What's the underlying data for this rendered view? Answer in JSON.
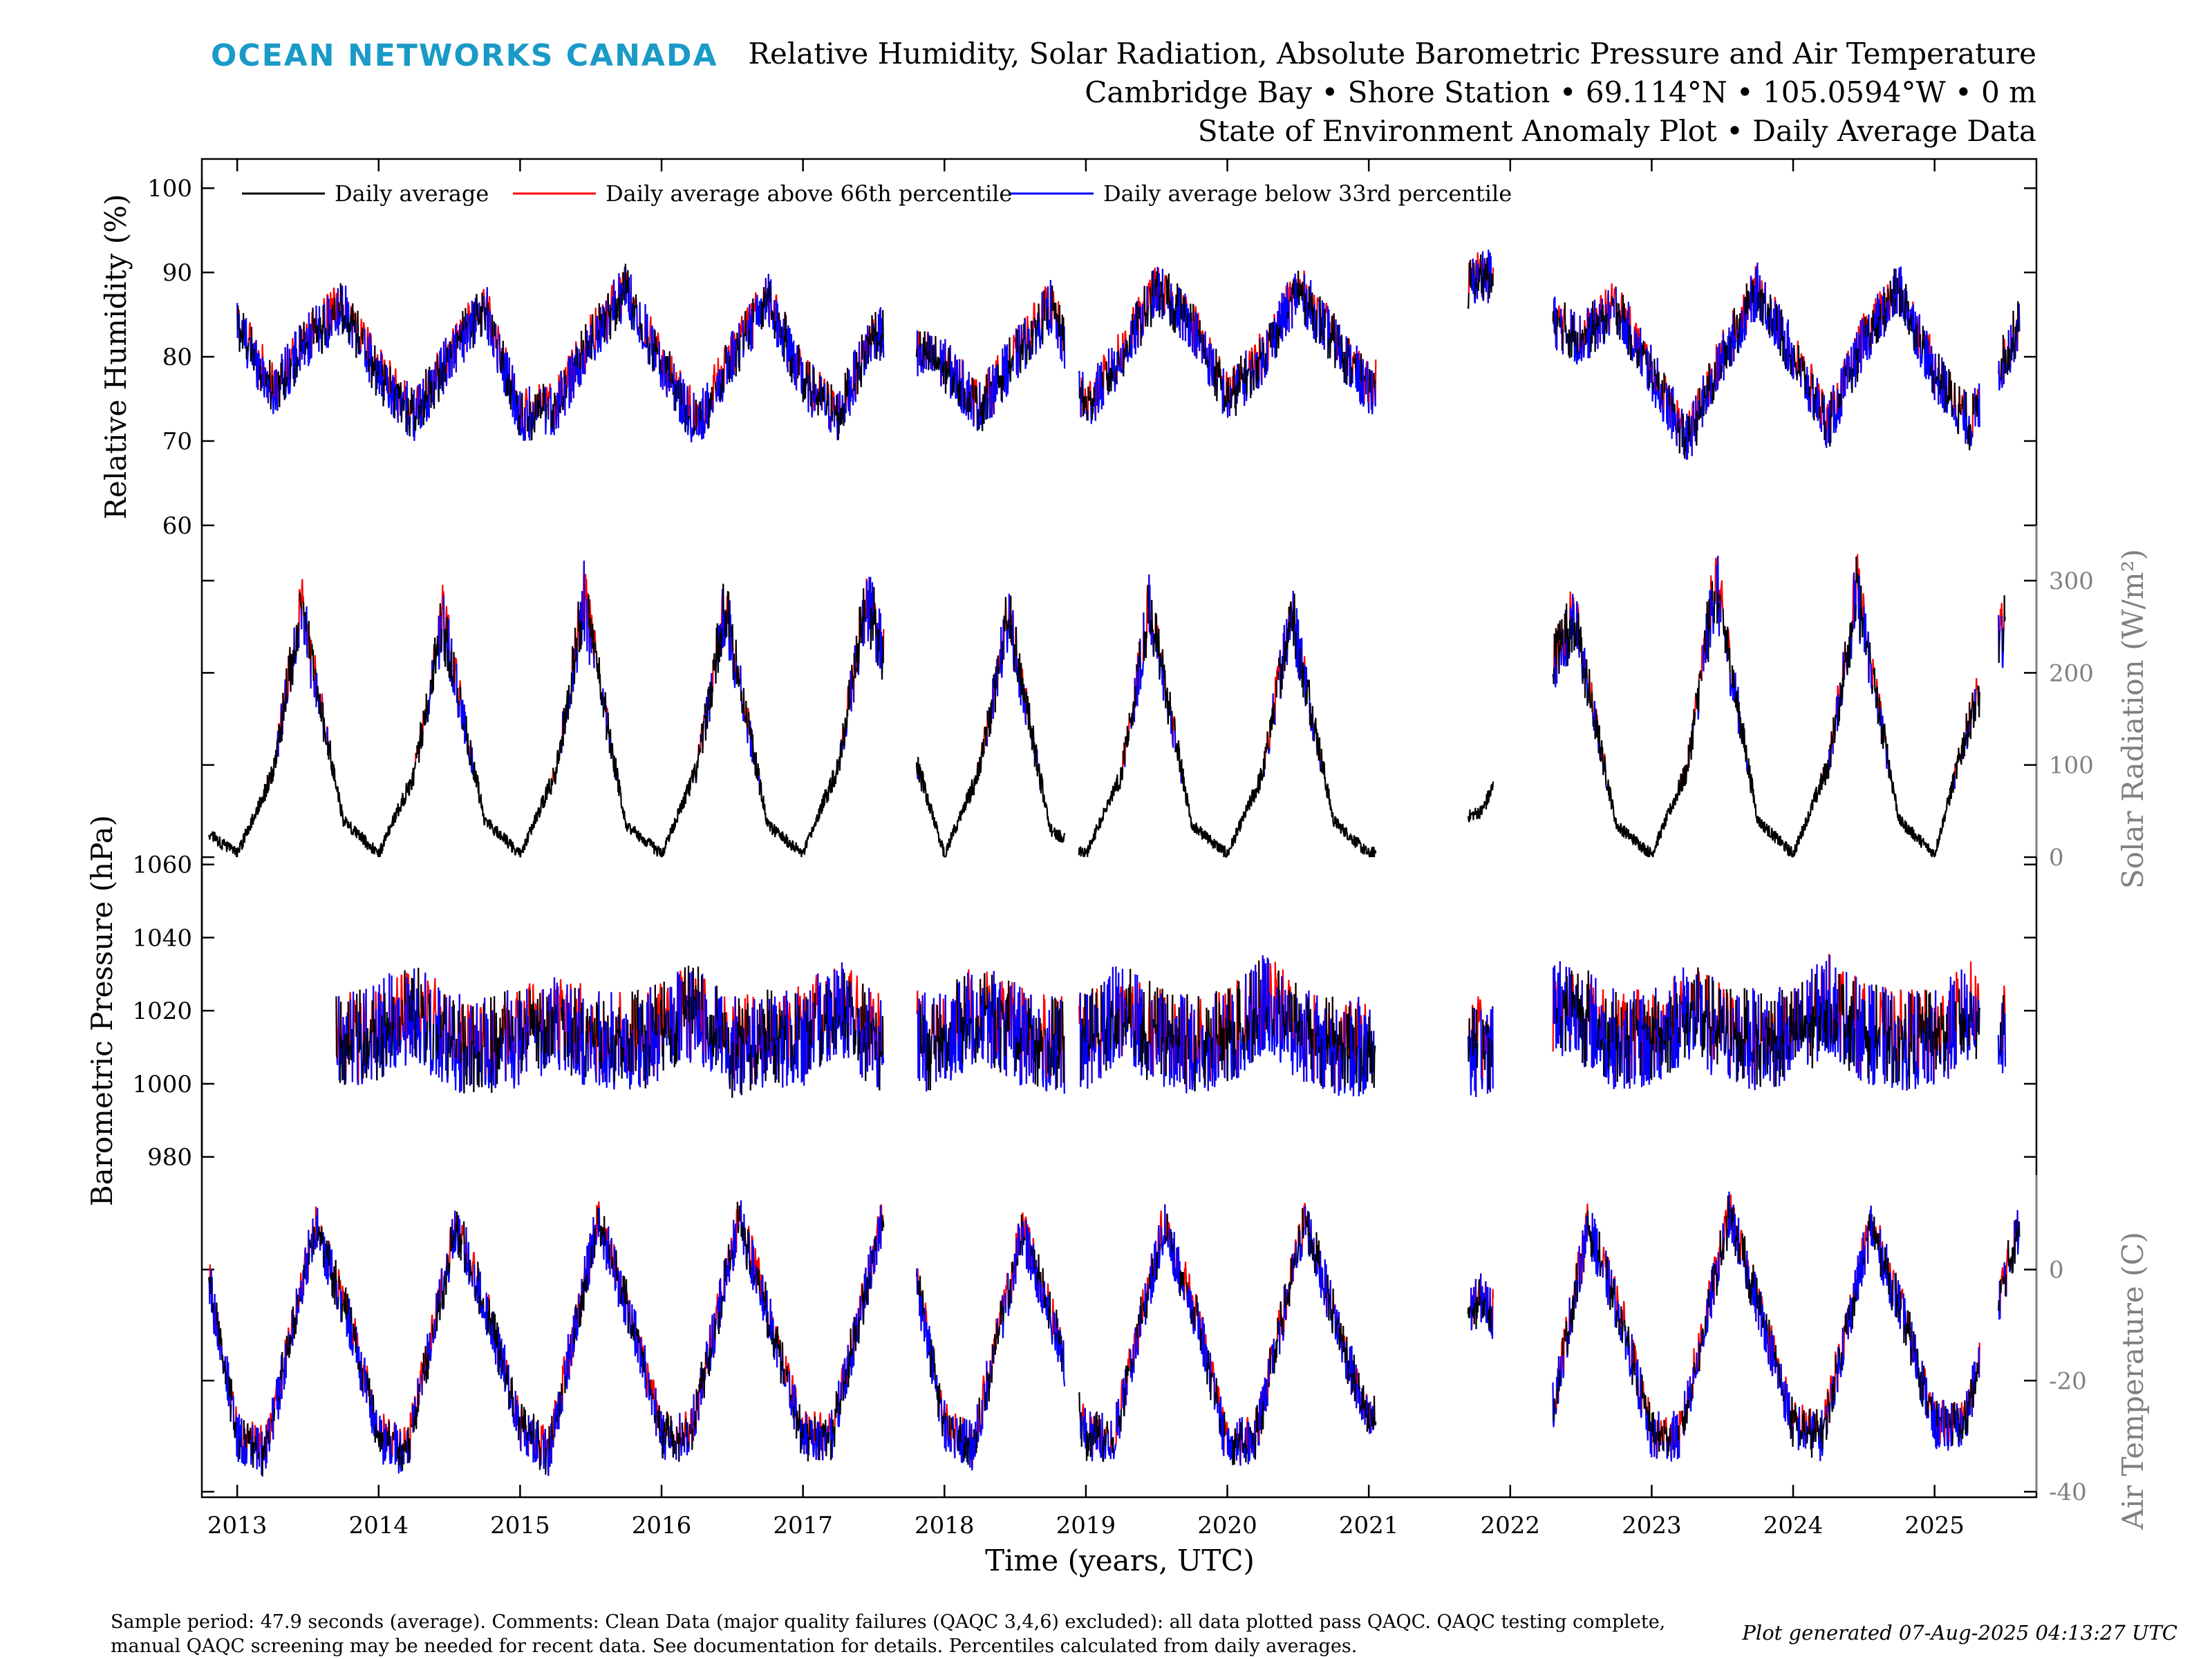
{
  "brand": "OCEAN NETWORKS CANADA",
  "title_lines": [
    "Relative Humidity, Solar Radiation, Absolute Barometric Pressure and Air Temperature",
    "Cambridge Bay • Shore Station • 69.114°N • 105.0594°W • 0 m",
    "State of Environment Anomaly Plot • Daily Average Data"
  ],
  "legend": [
    {
      "label": "Daily average",
      "color": "#000000"
    },
    {
      "label": "Daily average above 66th percentile",
      "color": "#ff0000"
    },
    {
      "label": "Daily average below 33rd percentile",
      "color": "#0000ff"
    }
  ],
  "footer_lines": [
    "Sample period: 47.9 seconds (average). Comments: Clean Data (major quality failures (QAQC 3,4,6) excluded): all data plotted pass QAQC. QAQC testing complete,",
    "manual QAQC screening may be needed for recent data. See documentation for details. Percentiles calculated from daily averages."
  ],
  "generated": "Plot generated 07-Aug-2025 04:13:27 UTC",
  "chart_data": {
    "type": "line",
    "xlabel": "Time (years, UTC)",
    "x_ticks": [
      "2013",
      "2014",
      "2015",
      "2016",
      "2017",
      "2018",
      "2019",
      "2020",
      "2021",
      "2022",
      "2023",
      "2024",
      "2025"
    ],
    "xlim": [
      2012.75,
      2025.72
    ],
    "data_gaps": [
      [
        2017.57,
        2017.8
      ],
      [
        2018.85,
        2018.95
      ],
      [
        2021.05,
        2021.7
      ],
      [
        2021.88,
        2022.3
      ],
      [
        2025.32,
        2025.45
      ]
    ],
    "panels": [
      {
        "name": "humidity",
        "ylabel": "Relative Humidity (%)",
        "ylim": [
          60,
          101
        ],
        "yticks": [
          60,
          70,
          80,
          90,
          100
        ],
        "axis_side": "left",
        "x": [
          2013.0,
          2013.25,
          2013.5,
          2013.75,
          2014.0,
          2014.25,
          2014.5,
          2014.75,
          2015.0,
          2015.25,
          2015.5,
          2015.75,
          2016.0,
          2016.25,
          2016.5,
          2016.75,
          2017.0,
          2017.25,
          2017.5,
          2018.0,
          2018.25,
          2018.5,
          2018.75,
          2019.0,
          2019.25,
          2019.5,
          2019.75,
          2020.0,
          2020.25,
          2020.5,
          2020.75,
          2021.0,
          2021.8,
          2022.5,
          2022.75,
          2023.0,
          2023.25,
          2023.5,
          2023.75,
          2024.0,
          2024.25,
          2024.5,
          2024.75,
          2025.0,
          2025.25,
          2025.5,
          2025.6
        ],
        "values": [
          84,
          76,
          82,
          86,
          78,
          73,
          80,
          86,
          73,
          74,
          82,
          88,
          79,
          72,
          80,
          87,
          77,
          73,
          83,
          79,
          74,
          80,
          86,
          74,
          80,
          88,
          84,
          75,
          80,
          88,
          82,
          76,
          90,
          82,
          86,
          78,
          70,
          80,
          88,
          80,
          72,
          82,
          88,
          78,
          72,
          80,
          84
        ]
      },
      {
        "name": "solar",
        "ylabel": "Solar Radiation (W/m²)",
        "ylim": [
          0,
          360
        ],
        "yticks": [
          0,
          100,
          200,
          300
        ],
        "axis_side": "right",
        "x": [
          2012.8,
          2013.0,
          2013.25,
          2013.45,
          2013.75,
          2014.0,
          2014.25,
          2014.45,
          2014.75,
          2015.0,
          2015.25,
          2015.45,
          2015.75,
          2016.0,
          2016.25,
          2016.45,
          2016.75,
          2017.0,
          2017.25,
          2017.45,
          2018.0,
          2018.25,
          2018.45,
          2018.75,
          2019.0,
          2019.25,
          2019.45,
          2019.75,
          2020.0,
          2020.25,
          2020.45,
          2020.75,
          2021.0,
          2021.8,
          2022.45,
          2022.75,
          2023.0,
          2023.25,
          2023.45,
          2023.75,
          2024.0,
          2024.25,
          2024.45,
          2024.75,
          2025.0,
          2025.25,
          2025.5
        ],
        "values": [
          25,
          3,
          90,
          270,
          40,
          3,
          90,
          260,
          40,
          3,
          90,
          280,
          35,
          3,
          95,
          270,
          35,
          3,
          100,
          280,
          3,
          95,
          260,
          30,
          3,
          90,
          270,
          35,
          3,
          90,
          270,
          40,
          3,
          50,
          260,
          35,
          3,
          95,
          300,
          40,
          3,
          100,
          290,
          40,
          3,
          150,
          250
        ]
      },
      {
        "name": "pressure",
        "ylabel": "Barometric Pressure (hPa)",
        "ylim": [
          975,
          1062
        ],
        "yticks": [
          980,
          1000,
          1020,
          1040,
          1060
        ],
        "axis_side": "left",
        "x": [
          2013.7,
          2014.0,
          2014.25,
          2014.5,
          2014.75,
          2015.0,
          2015.25,
          2015.5,
          2015.75,
          2016.0,
          2016.25,
          2016.5,
          2016.75,
          2017.0,
          2017.25,
          2017.5,
          2018.0,
          2018.25,
          2018.5,
          2018.75,
          2019.0,
          2019.25,
          2019.5,
          2019.75,
          2020.0,
          2020.25,
          2020.5,
          2020.75,
          2021.0,
          2021.8,
          2022.4,
          2022.75,
          2023.0,
          2023.25,
          2023.5,
          2023.75,
          2024.0,
          2024.25,
          2024.5,
          2024.75,
          2025.0,
          2025.25,
          2025.5
        ],
        "values": [
          1010,
          1015,
          1020,
          1012,
          1010,
          1013,
          1018,
          1012,
          1011,
          1014,
          1020,
          1010,
          1012,
          1013,
          1022,
          1011,
          1012,
          1020,
          1014,
          1010,
          1012,
          1020,
          1013,
          1011,
          1012,
          1022,
          1015,
          1010,
          1010,
          1010,
          1022,
          1012,
          1012,
          1020,
          1014,
          1012,
          1013,
          1022,
          1014,
          1012,
          1012,
          1020,
          1013
        ]
      },
      {
        "name": "temperature",
        "ylabel": "Air Temperature (C)",
        "ylim": [
          -41,
          17
        ],
        "yticks": [
          -40,
          -20,
          0
        ],
        "axis_side": "right",
        "x": [
          2012.8,
          2013.0,
          2013.2,
          2013.55,
          2013.8,
          2014.0,
          2014.2,
          2014.55,
          2014.8,
          2015.0,
          2015.2,
          2015.55,
          2015.8,
          2016.0,
          2016.2,
          2016.55,
          2016.8,
          2017.0,
          2017.2,
          2017.55,
          2017.8,
          2018.0,
          2018.2,
          2018.55,
          2018.8,
          2019.0,
          2019.2,
          2019.55,
          2019.8,
          2020.0,
          2020.2,
          2020.55,
          2020.8,
          2021.0,
          2021.8,
          2022.3,
          2022.55,
          2022.8,
          2023.0,
          2023.2,
          2023.55,
          2023.8,
          2024.0,
          2024.2,
          2024.55,
          2024.8,
          2025.0,
          2025.2,
          2025.6
        ],
        "values": [
          -2,
          -30,
          -33,
          8,
          -10,
          -30,
          -33,
          8,
          -10,
          -28,
          -33,
          9,
          -10,
          -30,
          -30,
          9,
          -12,
          -30,
          -30,
          8,
          -2,
          -28,
          -32,
          7,
          -12,
          -30,
          -30,
          8,
          -10,
          -32,
          -30,
          9,
          -12,
          -28,
          -5,
          -25,
          8,
          -10,
          -30,
          -30,
          10,
          -10,
          -28,
          -30,
          8,
          -10,
          -28,
          -28,
          8
        ]
      }
    ]
  }
}
